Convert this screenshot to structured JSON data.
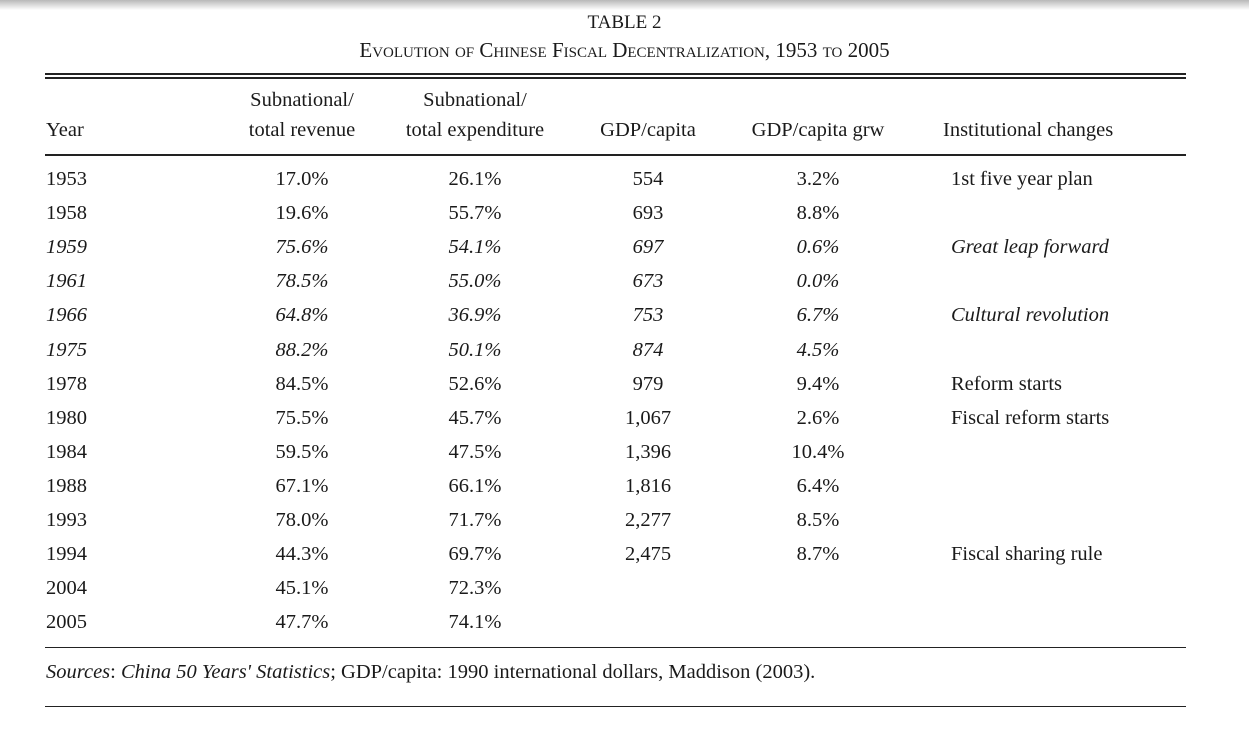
{
  "table_label": "TABLE 2",
  "title": "Evolution of Chinese Fiscal Decentralization, 1953 to 2005",
  "headers": {
    "year": "Year",
    "revenue_1": "Subnational/",
    "revenue_2": "total revenue",
    "expenditure_1": "Subnational/",
    "expenditure_2": "total expenditure",
    "gdp": "GDP/capita",
    "grw": "GDP/capita grw",
    "inst": "Institutional changes"
  },
  "rows": [
    {
      "year": "1953",
      "rev": "17.0%",
      "exp": "26.1%",
      "gdp": "554",
      "grw": "3.2%",
      "inst": "1st five year plan",
      "italic": false
    },
    {
      "year": "1958",
      "rev": "19.6%",
      "exp": "55.7%",
      "gdp": "693",
      "grw": "8.8%",
      "inst": "",
      "italic": false
    },
    {
      "year": "1959",
      "rev": "75.6%",
      "exp": "54.1%",
      "gdp": "697",
      "grw": "0.6%",
      "inst": "Great leap forward",
      "italic": true
    },
    {
      "year": "1961",
      "rev": "78.5%",
      "exp": "55.0%",
      "gdp": "673",
      "grw": "0.0%",
      "inst": "",
      "italic": true
    },
    {
      "year": "1966",
      "rev": "64.8%",
      "exp": "36.9%",
      "gdp": "753",
      "grw": "6.7%",
      "inst": "Cultural revolution",
      "italic": true
    },
    {
      "year": "1975",
      "rev": "88.2%",
      "exp": "50.1%",
      "gdp": "874",
      "grw": "4.5%",
      "inst": "",
      "italic": true
    },
    {
      "year": "1978",
      "rev": "84.5%",
      "exp": "52.6%",
      "gdp": "979",
      "grw": "9.4%",
      "inst": "Reform starts",
      "italic": false
    },
    {
      "year": "1980",
      "rev": "75.5%",
      "exp": "45.7%",
      "gdp": "1,067",
      "grw": "2.6%",
      "inst": "Fiscal reform starts",
      "italic": false
    },
    {
      "year": "1984",
      "rev": "59.5%",
      "exp": "47.5%",
      "gdp": "1,396",
      "grw": "10.4%",
      "inst": "",
      "italic": false
    },
    {
      "year": "1988",
      "rev": "67.1%",
      "exp": "66.1%",
      "gdp": "1,816",
      "grw": "6.4%",
      "inst": "",
      "italic": false
    },
    {
      "year": "1993",
      "rev": "78.0%",
      "exp": "71.7%",
      "gdp": "2,277",
      "grw": "8.5%",
      "inst": "",
      "italic": false
    },
    {
      "year": "1994",
      "rev": "44.3%",
      "exp": "69.7%",
      "gdp": "2,475",
      "grw": "8.7%",
      "inst": "Fiscal sharing rule",
      "italic": false
    },
    {
      "year": "2004",
      "rev": "45.1%",
      "exp": "72.3%",
      "gdp": "",
      "grw": "",
      "inst": "",
      "italic": false
    },
    {
      "year": "2005",
      "rev": "47.7%",
      "exp": "74.1%",
      "gdp": "",
      "grw": "",
      "inst": "",
      "italic": false
    }
  ],
  "sources": {
    "label": "Sources",
    "sep1": ": ",
    "work": "China 50 Years' Statistics",
    "rest": "; GDP/capita: 1990 international dollars, Maddison (2003)."
  }
}
